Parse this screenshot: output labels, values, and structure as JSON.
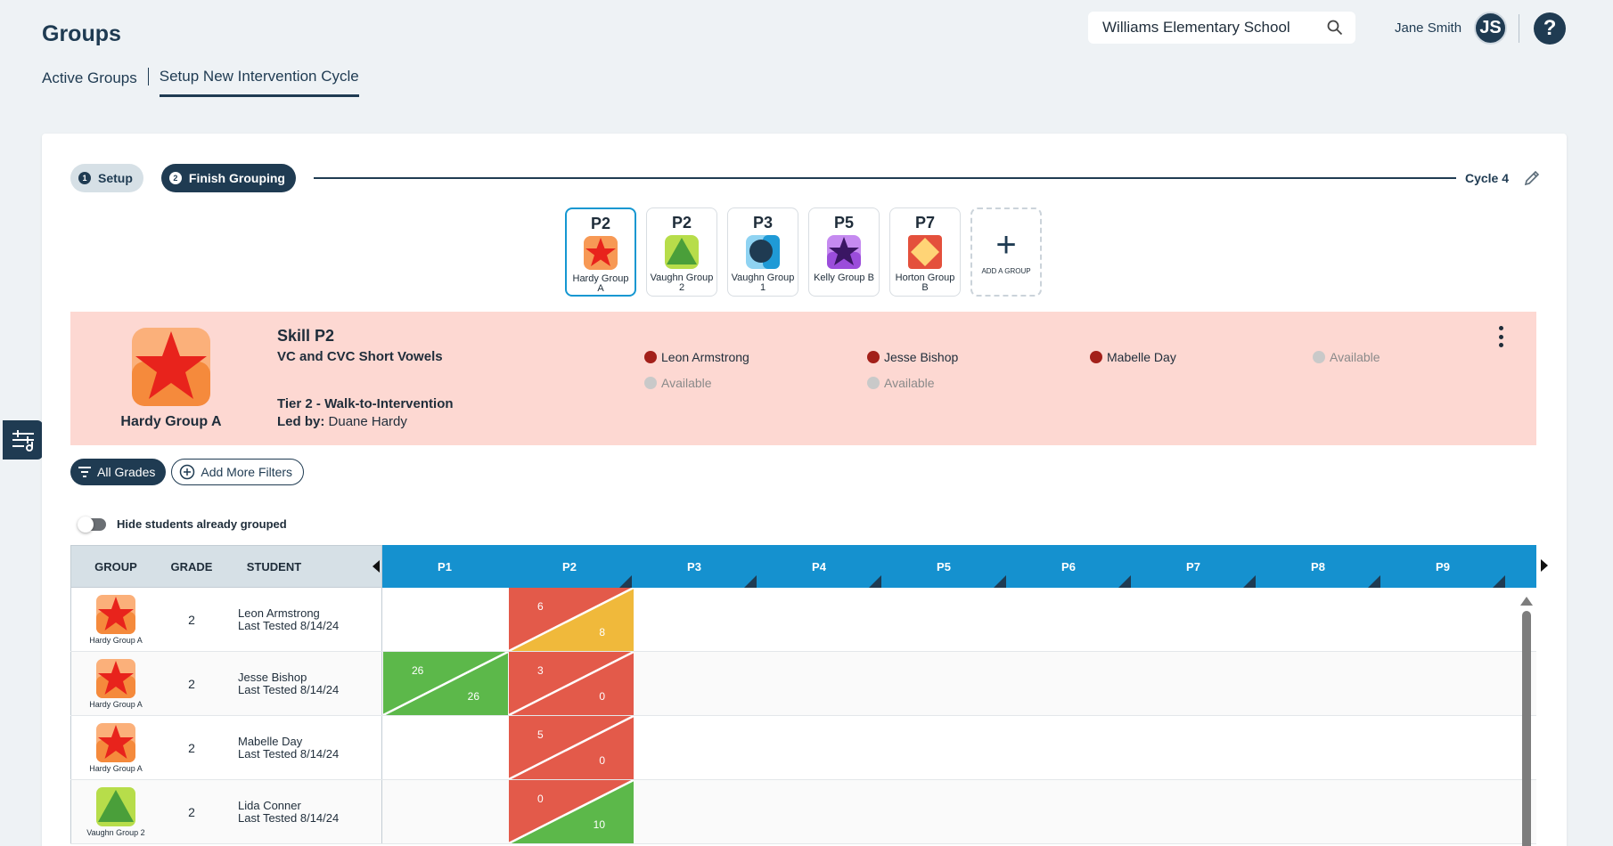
{
  "header": {
    "title": "Groups",
    "tabs": [
      "Active Groups",
      "Setup New Intervention Cycle"
    ],
    "school": "Williams Elementary School",
    "user_name": "Jane Smith",
    "user_initials": "JS",
    "help_label": "?"
  },
  "stepper": {
    "step1_num": "1",
    "step1_label": "Setup",
    "step2_num": "2",
    "step2_label": "Finish Grouping",
    "cycle_label": "Cycle 4"
  },
  "tiles": [
    {
      "skill": "P2",
      "name": "Hardy Group A",
      "icon": "red-star-icon"
    },
    {
      "skill": "P2",
      "name": "Vaughn Group 2",
      "icon": "green-triangle-icon"
    },
    {
      "skill": "P3",
      "name": "Vaughn Group 1",
      "icon": "navy-circle-icon"
    },
    {
      "skill": "P5",
      "name": "Kelly Group B",
      "icon": "purple-star-icon"
    },
    {
      "skill": "P7",
      "name": "Horton Group B",
      "icon": "yellow-diamond-icon"
    }
  ],
  "add_group_label": "ADD A GROUP",
  "panel": {
    "group_name": "Hardy Group A",
    "skill": "Skill P2",
    "description": "VC and CVC Short Vowels",
    "tier": "Tier 2 - Walk-to-Intervention",
    "led_by_label": "Led by:",
    "led_by": "Duane Hardy",
    "slots": [
      "Leon Armstrong",
      "Jesse Bishop",
      "Mabelle Day",
      "Available",
      "Available",
      "Available"
    ]
  },
  "filters": {
    "grades": "All Grades",
    "add_more": "Add More Filters",
    "toggle_label": "Hide students already grouped"
  },
  "table": {
    "col_group": "GROUP",
    "col_grade": "GRADE",
    "col_student": "STUDENT",
    "skills": [
      "P1",
      "P2",
      "P3",
      "P4",
      "P5",
      "P6",
      "P7",
      "P8",
      "P9"
    ],
    "rows": [
      {
        "group": "Hardy Group A",
        "grade": "2",
        "name": "Leon Armstrong",
        "tested": "Last Tested 8/14/24",
        "p2_a": "6",
        "p2_b": "8"
      },
      {
        "group": "Hardy Group A",
        "grade": "2",
        "name": "Jesse Bishop",
        "tested": "Last Tested 8/14/24",
        "p1_a": "26",
        "p1_b": "26",
        "p2_a": "3",
        "p2_b": "0"
      },
      {
        "group": "Hardy Group A",
        "grade": "2",
        "name": "Mabelle Day",
        "tested": "Last Tested 8/14/24",
        "p2_a": "5",
        "p2_b": "0"
      },
      {
        "group": "Vaughn Group 2",
        "grade": "2",
        "name": "Lida Conner",
        "tested": "Last Tested 8/14/24",
        "p2_a": "0",
        "p2_b": "10"
      }
    ]
  },
  "colors": {
    "navy": "#1f3b52",
    "blue": "#1591cf",
    "red": "#e35a4a",
    "green": "#5cb84a",
    "yellow": "#f0b93b",
    "panel": "#fdd8d2"
  }
}
